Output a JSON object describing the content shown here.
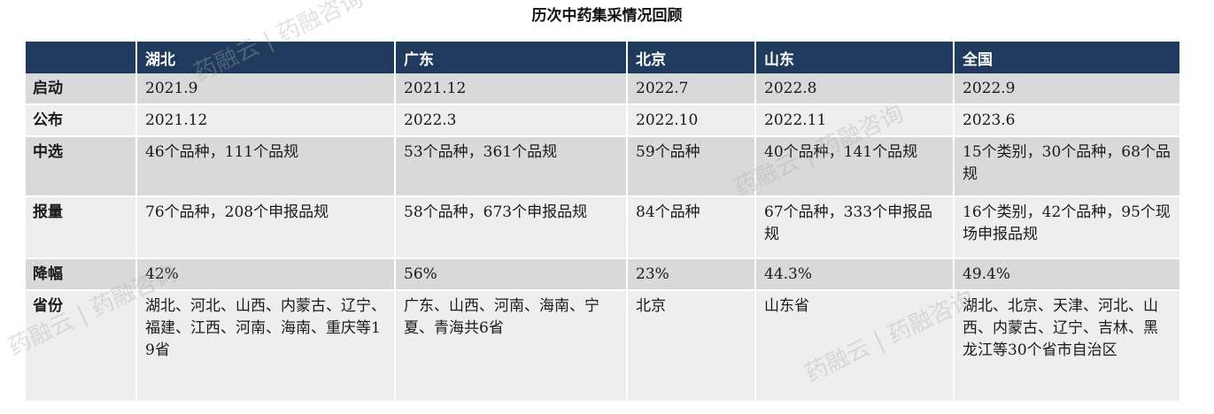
{
  "title": "历次中药集采情况回顾",
  "header": [
    "",
    "湖北",
    "广东",
    "北京",
    "山东",
    "全国"
  ],
  "rows": [
    {
      "label": "启动",
      "cells": [
        "2021.9",
        "2021.12",
        "2022.7",
        "2022.8",
        "2022.9"
      ]
    },
    {
      "label": "公布",
      "cells": [
        "2021.12",
        "2022.3",
        "2022.10",
        "2022.11",
        "2023.6"
      ]
    },
    {
      "label": "中选",
      "cells": [
        "46个品种，111个品规",
        "53个品种，361个品规",
        "59个品种",
        "40个品种，141个品规",
        "15个类别，30个品种，68个品规"
      ]
    },
    {
      "label": "报量",
      "cells": [
        "76个品种，208个申报品规",
        "58个品种，673个申报品规",
        "84个品种",
        "67个品种，333个申报品规",
        "16个类别，42个品种，95个现场申报品规"
      ]
    },
    {
      "label": "降幅",
      "cells": [
        "42%",
        "56%",
        "23%",
        "44.3%",
        "49.4%"
      ]
    },
    {
      "label": "省份",
      "cells": [
        "湖北、河北、山西、内蒙古、辽宁、福建、江西、河南、海南、重庆等19省",
        "广东、山西、河南、海南、宁夏、青海共6省",
        "北京",
        "山东省",
        "湖北、北京、天津、河北、山西、内蒙古、辽宁、吉林、黑龙江等30个省市自治区"
      ]
    }
  ],
  "watermark": "药融云 | 药融咨询"
}
